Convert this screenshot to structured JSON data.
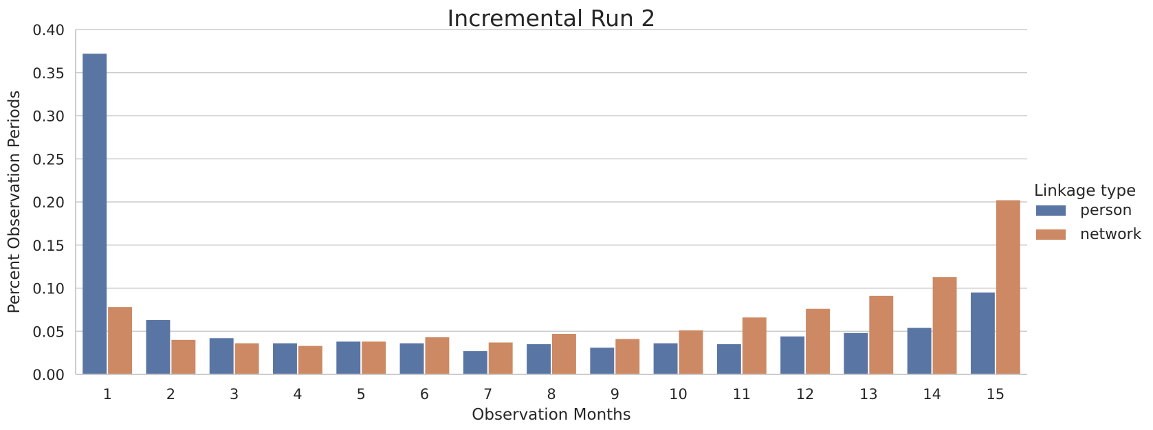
{
  "chart_data": {
    "type": "bar",
    "title": "Incremental Run 2",
    "xlabel": "Observation Months",
    "ylabel": "Percent Observation Periods",
    "categories": [
      "1",
      "2",
      "3",
      "4",
      "5",
      "6",
      "7",
      "8",
      "9",
      "10",
      "11",
      "12",
      "13",
      "14",
      "15"
    ],
    "series": [
      {
        "name": "person",
        "color": "#5975a4",
        "values": [
          0.372,
          0.063,
          0.042,
          0.036,
          0.038,
          0.036,
          0.027,
          0.035,
          0.031,
          0.036,
          0.035,
          0.044,
          0.048,
          0.054,
          0.095
        ]
      },
      {
        "name": "network",
        "color": "#cc8963",
        "values": [
          0.078,
          0.04,
          0.036,
          0.033,
          0.038,
          0.043,
          0.037,
          0.047,
          0.041,
          0.051,
          0.066,
          0.076,
          0.091,
          0.113,
          0.202
        ]
      }
    ],
    "ylim": [
      0,
      0.4
    ],
    "yticks": [
      "0.00",
      "0.05",
      "0.10",
      "0.15",
      "0.20",
      "0.25",
      "0.30",
      "0.35",
      "0.40"
    ],
    "grid": true,
    "legend": {
      "title": "Linkage type",
      "position": "right"
    }
  }
}
